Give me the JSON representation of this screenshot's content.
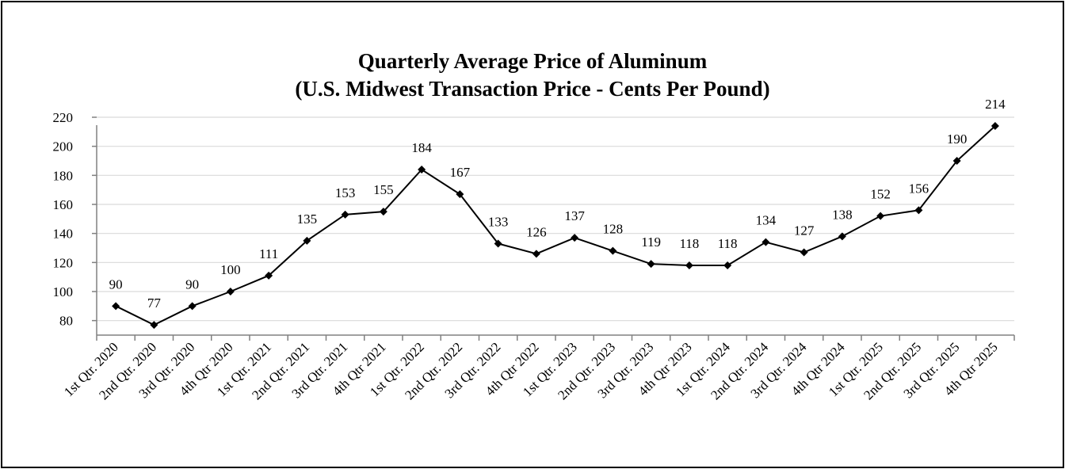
{
  "chart_data": {
    "type": "line",
    "title": "Quarterly Average Price of Aluminum",
    "subtitle": "(U.S. Midwest Transaction Price - Cents Per Pound)",
    "xlabel": "",
    "ylabel": "",
    "ylim": [
      70,
      220
    ],
    "yticks": [
      80,
      100,
      120,
      140,
      160,
      180,
      200,
      220
    ],
    "grid": true,
    "legend": "none",
    "marker": "diamond",
    "colors": {
      "line": "#000000",
      "grid": "#d9d9d9",
      "axis": "#808080"
    },
    "categories": [
      "1st Qtr. 2020",
      "2nd Qtr. 2020",
      "3rd Qtr. 2020",
      "4th Qtr 2020",
      "1st Qtr. 2021",
      "2nd Qtr. 2021",
      "3rd Qtr. 2021",
      "4th Qtr 2021",
      "1st Qtr. 2022",
      "2nd Qtr. 2022",
      "3rd Qtr. 2022",
      "4th Qtr 2022",
      "1st Qtr. 2023",
      "2nd Qtr. 2023",
      "3rd Qtr. 2023",
      "4th Qtr 2023",
      "1st Qtr. 2024",
      "2nd Qtr. 2024",
      "3rd Qtr. 2024",
      "4th Qtr 2024",
      "1st Qtr. 2025",
      "2nd Qtr. 2025",
      "3rd Qtr. 2025",
      "4th Qtr 2025"
    ],
    "values": [
      90,
      77,
      90,
      100,
      111,
      135,
      153,
      155,
      184,
      167,
      133,
      126,
      137,
      128,
      119,
      118,
      118,
      134,
      127,
      138,
      152,
      156,
      190,
      214
    ]
  }
}
